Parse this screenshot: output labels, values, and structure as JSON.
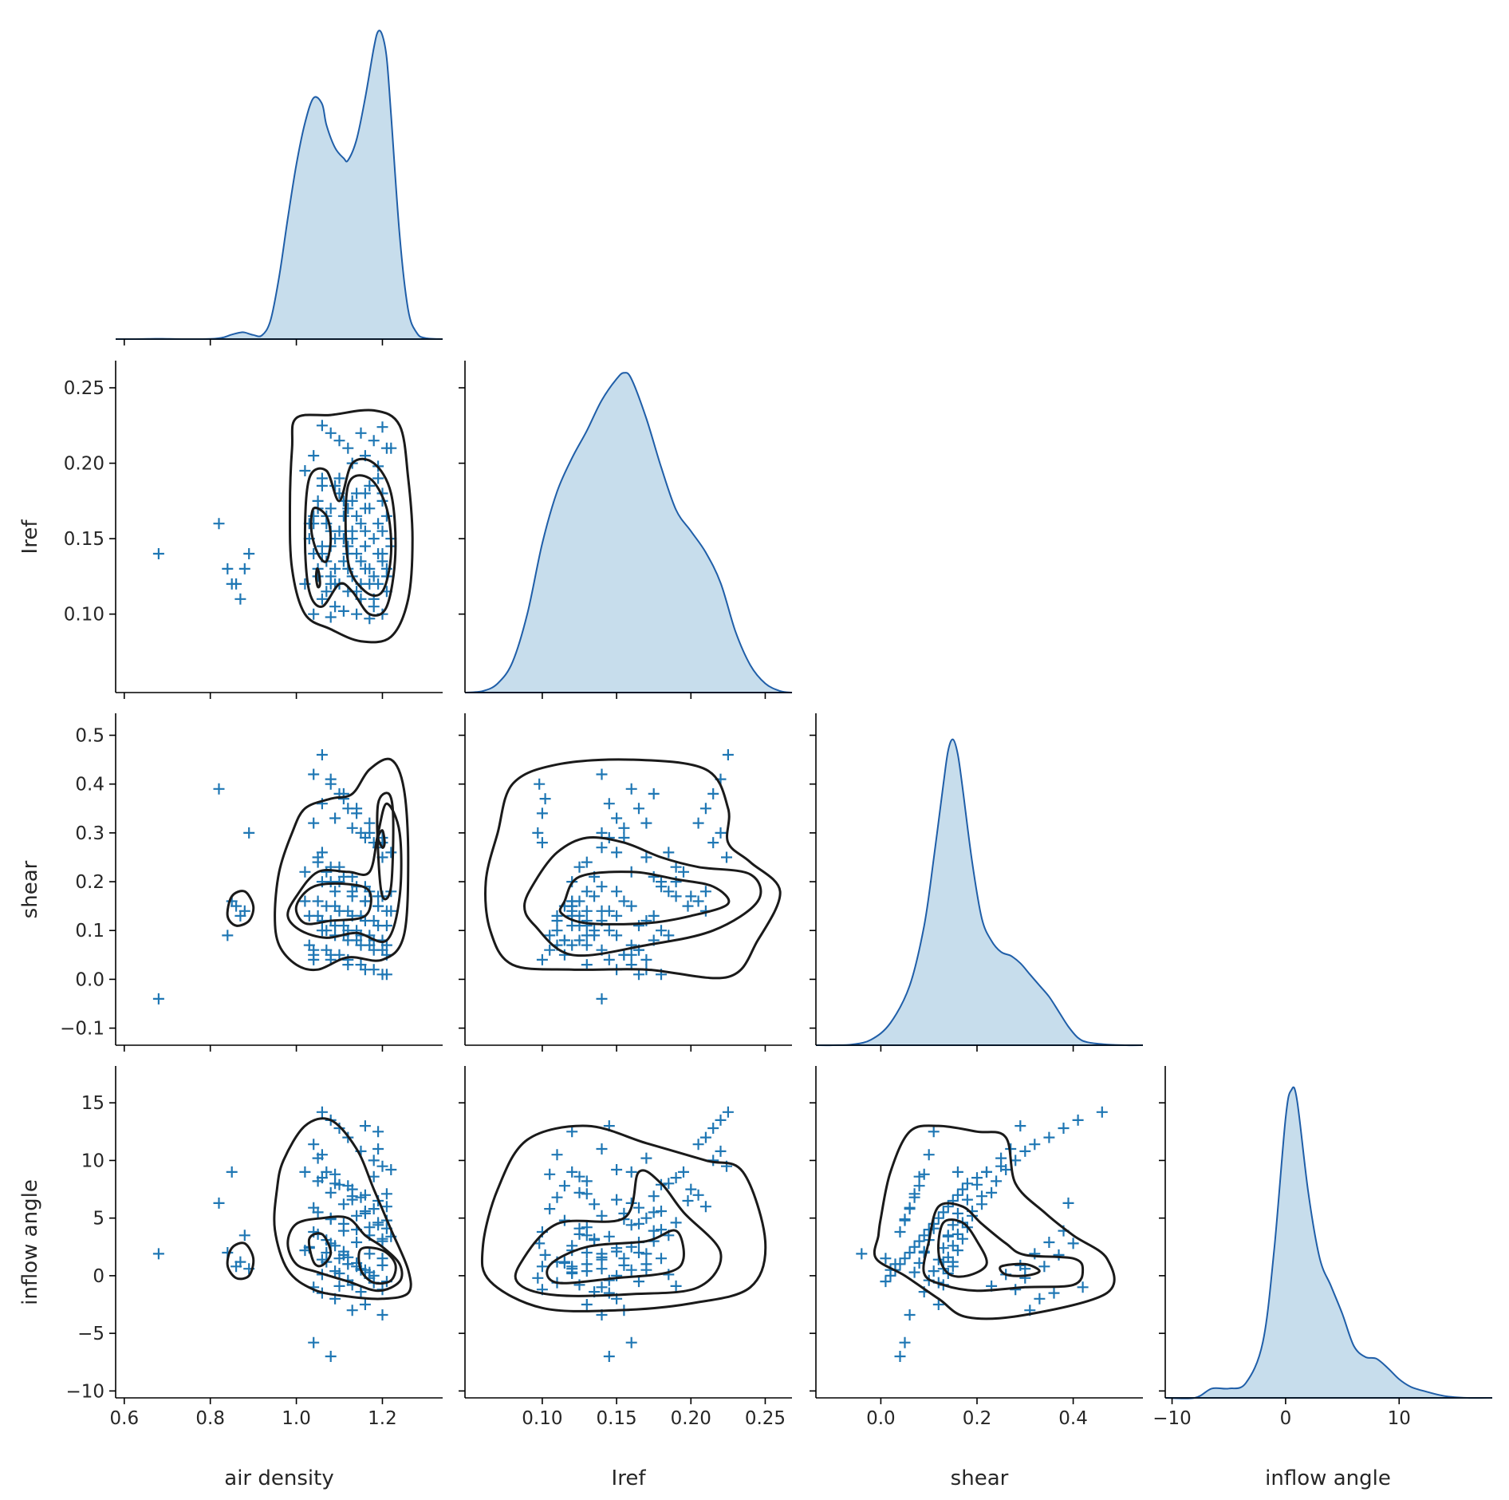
{
  "chart_data": {
    "type": "scatter",
    "title": "",
    "variables": [
      "air density",
      "Iref",
      "shear",
      "inflow angle"
    ],
    "axes": {
      "air density": {
        "label": "air density",
        "range": [
          0.58,
          1.34
        ],
        "ticks": [
          0.6,
          0.8,
          1.0,
          1.2
        ],
        "tick_labels": [
          "0.6",
          "0.8",
          "1.0",
          "1.2"
        ]
      },
      "Iref": {
        "label": "Iref",
        "range": [
          0.048,
          0.268
        ],
        "ticks": [
          0.1,
          0.15,
          0.2,
          0.25
        ],
        "tick_labels": [
          "0.10",
          "0.15",
          "0.20",
          "0.25"
        ]
      },
      "shear": {
        "label": "shear",
        "range": [
          -0.135,
          0.545
        ],
        "ticks": [
          -0.1,
          0.0,
          0.1,
          0.2,
          0.3,
          0.4,
          0.5
        ],
        "tick_labels": [
          "−0.1",
          "0.0",
          "0.1",
          "0.2",
          "0.3",
          "0.4",
          "0.5"
        ],
        "bottom_ticks": [
          0.0,
          0.2,
          0.4
        ],
        "bottom_tick_labels": [
          "0.0",
          "0.2",
          "0.4"
        ]
      },
      "inflow angle": {
        "label": "inflow angle",
        "range": [
          -10.6,
          18.2
        ],
        "ticks": [
          -10,
          -5,
          0,
          5,
          10,
          15
        ],
        "tick_labels": [
          "−10",
          "−5",
          "0",
          "5",
          "10",
          "15"
        ],
        "bottom_ticks": [
          -10,
          0,
          10
        ],
        "bottom_tick_labels": [
          "−10",
          "0",
          "10"
        ]
      }
    },
    "diagonal_kde": {
      "air density": {
        "x": [
          0.58,
          0.62,
          0.66,
          0.68,
          0.7,
          0.74,
          0.78,
          0.81,
          0.83,
          0.85,
          0.87,
          0.88,
          0.9,
          0.92,
          0.94,
          0.96,
          0.98,
          1.0,
          1.02,
          1.04,
          1.06,
          1.07,
          1.09,
          1.11,
          1.12,
          1.14,
          1.16,
          1.18,
          1.19,
          1.2,
          1.21,
          1.22,
          1.24,
          1.26,
          1.28,
          1.3,
          1.34
        ],
        "density": [
          0.0,
          0.0,
          0.01,
          0.015,
          0.01,
          0.0,
          0.0,
          0.02,
          0.08,
          0.22,
          0.32,
          0.32,
          0.2,
          0.18,
          0.9,
          3.0,
          5.8,
          8.4,
          10.4,
          11.6,
          11.3,
          10.3,
          9.2,
          8.7,
          8.6,
          9.6,
          11.6,
          14.0,
          14.8,
          14.6,
          13.5,
          10.8,
          5.0,
          1.4,
          0.3,
          0.05,
          0.0
        ]
      },
      "Iref": {
        "x": [
          0.048,
          0.06,
          0.07,
          0.08,
          0.09,
          0.1,
          0.11,
          0.12,
          0.13,
          0.14,
          0.15,
          0.155,
          0.16,
          0.17,
          0.18,
          0.19,
          0.2,
          0.21,
          0.22,
          0.23,
          0.24,
          0.25,
          0.26,
          0.268
        ],
        "density": [
          0.0,
          0.05,
          0.3,
          1.0,
          2.6,
          4.9,
          6.6,
          7.7,
          8.6,
          9.6,
          10.3,
          10.5,
          10.3,
          9.0,
          7.4,
          6.0,
          5.3,
          4.6,
          3.6,
          2.0,
          0.9,
          0.3,
          0.05,
          0.0
        ],
        "ylim": [
          0,
          10.9
        ]
      },
      "shear": {
        "x": [
          -0.135,
          -0.1,
          -0.06,
          -0.02,
          0.02,
          0.06,
          0.09,
          0.11,
          0.13,
          0.14,
          0.15,
          0.16,
          0.17,
          0.19,
          0.21,
          0.23,
          0.25,
          0.27,
          0.29,
          0.31,
          0.33,
          0.35,
          0.37,
          0.39,
          0.41,
          0.43,
          0.47,
          0.51,
          0.545
        ],
        "density": [
          0.0,
          0.0,
          0.02,
          0.15,
          0.6,
          1.6,
          3.2,
          5.0,
          7.0,
          7.9,
          8.2,
          7.8,
          6.9,
          4.9,
          3.4,
          2.8,
          2.5,
          2.4,
          2.2,
          1.9,
          1.6,
          1.3,
          0.9,
          0.5,
          0.2,
          0.08,
          0.02,
          0.0,
          0.0
        ],
        "ylim": [
          0,
          8.9
        ]
      },
      "inflow angle": {
        "x": [
          -10.6,
          -8,
          -6.5,
          -5,
          -3.5,
          -2,
          -1,
          0,
          0.5,
          1,
          2,
          3,
          4,
          5,
          6,
          7,
          8,
          9,
          10,
          11,
          12,
          14,
          16,
          18.2
        ],
        "density": [
          0.0,
          0.0,
          0.005,
          0.005,
          0.008,
          0.03,
          0.08,
          0.15,
          0.165,
          0.16,
          0.11,
          0.075,
          0.06,
          0.045,
          0.028,
          0.022,
          0.021,
          0.016,
          0.01,
          0.006,
          0.004,
          0.001,
          0.0,
          0.0
        ],
        "ylim": [
          0,
          0.178
        ]
      }
    },
    "scatter": {
      "air density": [
        1.06,
        1.08,
        1.1,
        1.12,
        1.04,
        1.15,
        1.18,
        1.2,
        1.02,
        1.06,
        1.09,
        1.13,
        1.16,
        1.19,
        1.21,
        1.05,
        1.08,
        1.11,
        1.14,
        1.17,
        1.2,
        1.03,
        1.07,
        1.1,
        1.12,
        1.15,
        1.18,
        1.21,
        1.04,
        1.06,
        1.09,
        1.13,
        1.16,
        1.19,
        1.22,
        1.05,
        1.08,
        1.11,
        1.14,
        1.17,
        1.2,
        1.02,
        1.07,
        1.1,
        1.13,
        1.16,
        1.19,
        1.06,
        1.09,
        1.12,
        1.15,
        1.18,
        1.21,
        1.04,
        1.08,
        1.11,
        1.14,
        1.17,
        1.2,
        1.05,
        1.07,
        1.1,
        1.13,
        1.16,
        1.19,
        1.22,
        1.03,
        1.06,
        1.09,
        1.12,
        1.15,
        1.18,
        1.21,
        1.04,
        1.08,
        1.11,
        1.14,
        1.17,
        1.2,
        1.06,
        1.1,
        1.13,
        1.16,
        1.19,
        1.05,
        1.09,
        1.12,
        1.15,
        1.18,
        1.21,
        1.07,
        1.11,
        1.14,
        1.17,
        1.2,
        1.04,
        1.08,
        1.12,
        1.16,
        1.2,
        0.86,
        0.88,
        0.87,
        0.89,
        0.85,
        0.82,
        0.68,
        0.84,
        1.08,
        1.22
      ],
      "Iref": [
        0.225,
        0.22,
        0.215,
        0.21,
        0.205,
        0.22,
        0.215,
        0.224,
        0.195,
        0.19,
        0.185,
        0.2,
        0.205,
        0.198,
        0.21,
        0.175,
        0.17,
        0.165,
        0.18,
        0.185,
        0.175,
        0.16,
        0.165,
        0.155,
        0.17,
        0.16,
        0.15,
        0.165,
        0.14,
        0.145,
        0.15,
        0.155,
        0.145,
        0.14,
        0.15,
        0.13,
        0.125,
        0.135,
        0.14,
        0.13,
        0.135,
        0.12,
        0.115,
        0.12,
        0.125,
        0.13,
        0.12,
        0.11,
        0.105,
        0.115,
        0.11,
        0.105,
        0.115,
        0.1,
        0.098,
        0.102,
        0.1,
        0.097,
        0.1,
        0.17,
        0.16,
        0.18,
        0.15,
        0.155,
        0.16,
        0.145,
        0.15,
        0.14,
        0.13,
        0.145,
        0.135,
        0.125,
        0.13,
        0.165,
        0.155,
        0.175,
        0.165,
        0.17,
        0.155,
        0.185,
        0.19,
        0.175,
        0.18,
        0.19,
        0.125,
        0.12,
        0.14,
        0.12,
        0.11,
        0.125,
        0.135,
        0.15,
        0.115,
        0.12,
        0.14,
        0.16,
        0.145,
        0.13,
        0.17,
        0.18,
        0.12,
        0.13,
        0.11,
        0.14,
        0.12,
        0.16,
        0.14,
        0.13,
        0.12,
        0.21
      ],
      "shear": [
        0.46,
        0.41,
        0.38,
        0.35,
        0.32,
        0.3,
        0.28,
        0.25,
        0.22,
        0.2,
        0.18,
        0.17,
        0.16,
        0.15,
        0.14,
        0.13,
        0.12,
        0.11,
        0.1,
        0.09,
        0.08,
        0.07,
        0.06,
        0.05,
        0.04,
        0.03,
        0.02,
        0.01,
        0.42,
        0.36,
        0.33,
        0.31,
        0.29,
        0.27,
        0.26,
        0.24,
        0.23,
        0.21,
        0.19,
        0.18,
        0.17,
        0.16,
        0.15,
        0.14,
        0.13,
        0.12,
        0.11,
        0.1,
        0.09,
        0.08,
        0.07,
        0.06,
        0.05,
        0.04,
        0.4,
        0.37,
        0.34,
        0.3,
        0.28,
        0.25,
        0.22,
        0.2,
        0.18,
        0.16,
        0.15,
        0.14,
        0.13,
        0.12,
        0.11,
        0.1,
        0.09,
        0.08,
        0.07,
        0.06,
        0.05,
        0.38,
        0.35,
        0.32,
        0.29,
        0.26,
        0.23,
        0.21,
        0.19,
        0.17,
        0.16,
        0.15,
        0.14,
        0.13,
        0.12,
        0.11,
        0.1,
        0.09,
        0.08,
        0.07,
        0.06,
        0.05,
        0.04,
        0.03,
        0.02,
        0.01,
        0.15,
        0.14,
        0.13,
        0.3,
        0.16,
        0.39,
        -0.04,
        0.09,
        0.2,
        0.18
      ],
      "inflow angle": [
        14.2,
        13.5,
        12.8,
        12.0,
        11.4,
        10.8,
        10.0,
        9.5,
        9.0,
        8.5,
        8.0,
        7.5,
        7.0,
        6.5,
        6.0,
        5.5,
        5.0,
        4.5,
        4.0,
        3.5,
        3.0,
        2.5,
        2.0,
        1.5,
        1.0,
        0.5,
        0.0,
        -0.5,
        -1.0,
        -1.5,
        -2.0,
        -3.0,
        13.0,
        11.0,
        9.2,
        8.2,
        7.2,
        6.2,
        5.2,
        4.2,
        3.2,
        2.2,
        1.2,
        0.2,
        -0.8,
        -2.5,
        12.5,
        10.5,
        8.8,
        7.8,
        6.8,
        5.8,
        4.8,
        3.8,
        2.8,
        1.8,
        0.8,
        -0.2,
        -1.2,
        10.2,
        9.0,
        7.9,
        6.6,
        5.4,
        4.4,
        3.4,
        2.4,
        1.4,
        0.4,
        -0.4,
        -1.4,
        8.6,
        7.1,
        5.9,
        4.9,
        3.9,
        2.9,
        1.9,
        0.9,
        0.1,
        -0.9,
        6.9,
        5.6,
        4.6,
        3.6,
        2.6,
        1.6,
        0.6,
        -0.6,
        4.1,
        3.1,
        2.1,
        1.1,
        0.3,
        -3.4,
        -5.8,
        -7.0,
        1.0,
        0.5,
        1.5,
        0.8,
        3.5,
        1.2,
        0.6,
        9.0,
        6.3,
        1.9,
        2.0
      ]
    }
  }
}
